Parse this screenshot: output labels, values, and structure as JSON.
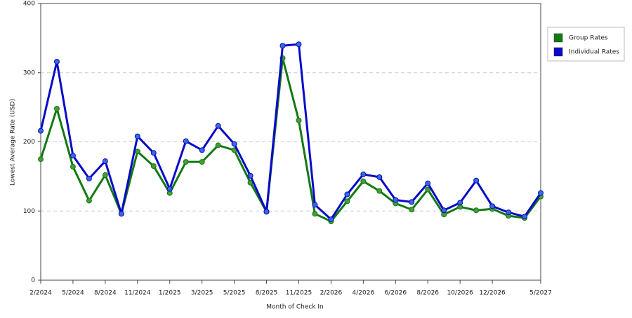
{
  "chart_data": {
    "type": "line",
    "x_label": "Month of Check In",
    "y_label": "Lowest Average Rate (USD)",
    "categories": [
      "2/2024",
      null,
      "5/2024",
      null,
      "8/2024",
      null,
      "11/2024",
      null,
      "1/2025",
      null,
      "3/2025",
      null,
      "5/2025",
      null,
      "8/2025",
      null,
      "11/2025",
      null,
      "2/2026",
      null,
      "4/2026",
      null,
      "6/2026",
      null,
      "8/2026",
      null,
      "10/2026",
      null,
      "12/2026",
      null,
      null,
      "5/2027"
    ],
    "series": [
      {
        "name": "Group Rates",
        "color": "#127a12",
        "marker_color": "#4a9a3a",
        "values": [
          175,
          248,
          164,
          115,
          152,
          96,
          186,
          165,
          126,
          171,
          171,
          195,
          188,
          141,
          99,
          321,
          231,
          96,
          85,
          114,
          143,
          129,
          111,
          102,
          131,
          95,
          106,
          101,
          103,
          93,
          90,
          121
        ]
      },
      {
        "name": "Individual Rates",
        "color": "#0a0ac8",
        "marker_color": "#3a6ad8",
        "values": [
          216,
          316,
          180,
          147,
          172,
          96,
          208,
          184,
          132,
          201,
          188,
          223,
          197,
          151,
          99,
          339,
          341,
          109,
          88,
          124,
          153,
          149,
          116,
          113,
          140,
          101,
          112,
          144,
          107,
          98,
          92,
          126
        ]
      }
    ],
    "ylim": [
      0,
      400
    ],
    "yticks": [
      0,
      100,
      200,
      300,
      400
    ],
    "grid": true,
    "legend": "right"
  }
}
